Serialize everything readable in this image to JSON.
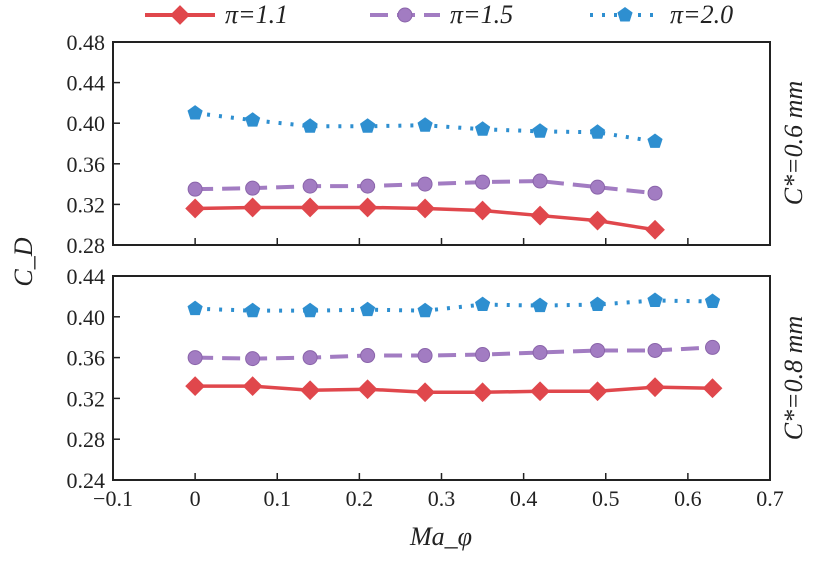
{
  "chart_data": [
    {
      "type": "line",
      "panel_label": "C*=0.6 mm",
      "ylabel": "C_D",
      "xlabel": "Ma_φ",
      "xlim": [
        -0.1,
        0.7
      ],
      "ylim": [
        0.28,
        0.48
      ],
      "yticks": [
        "0.28",
        "0.32",
        "0.36",
        "0.40",
        "0.44",
        "0.48"
      ],
      "series": [
        {
          "name": "π=1.1",
          "x": [
            0,
            0.07,
            0.14,
            0.21,
            0.28,
            0.35,
            0.42,
            0.49,
            0.56
          ],
          "y": [
            0.316,
            0.317,
            0.317,
            0.317,
            0.316,
            0.314,
            0.309,
            0.304,
            0.295
          ]
        },
        {
          "name": "π=1.5",
          "x": [
            0,
            0.07,
            0.14,
            0.21,
            0.28,
            0.35,
            0.42,
            0.49,
            0.56
          ],
          "y": [
            0.335,
            0.336,
            0.338,
            0.338,
            0.34,
            0.342,
            0.343,
            0.337,
            0.331
          ]
        },
        {
          "name": "π=2.0",
          "x": [
            0,
            0.07,
            0.14,
            0.21,
            0.28,
            0.35,
            0.42,
            0.49,
            0.56
          ],
          "y": [
            0.41,
            0.403,
            0.397,
            0.397,
            0.398,
            0.394,
            0.392,
            0.391,
            0.382
          ]
        }
      ]
    },
    {
      "type": "line",
      "panel_label": "C*=0.8 mm",
      "xlim": [
        -0.1,
        0.7
      ],
      "ylim": [
        0.24,
        0.44
      ],
      "yticks": [
        "0.24",
        "0.28",
        "0.32",
        "0.36",
        "0.40",
        "0.44"
      ],
      "xticks": [
        "−0.1",
        "0",
        "0.1",
        "0.2",
        "0.3",
        "0.4",
        "0.5",
        "0.6",
        "0.7"
      ],
      "series": [
        {
          "name": "π=1.1",
          "x": [
            0,
            0.07,
            0.14,
            0.21,
            0.28,
            0.35,
            0.42,
            0.49,
            0.56,
            0.63
          ],
          "y": [
            0.332,
            0.332,
            0.328,
            0.329,
            0.326,
            0.326,
            0.327,
            0.327,
            0.331,
            0.33
          ]
        },
        {
          "name": "π=1.5",
          "x": [
            0,
            0.07,
            0.14,
            0.21,
            0.28,
            0.35,
            0.42,
            0.49,
            0.56,
            0.63
          ],
          "y": [
            0.36,
            0.359,
            0.36,
            0.362,
            0.362,
            0.363,
            0.365,
            0.367,
            0.367,
            0.37
          ]
        },
        {
          "name": "π=2.0",
          "x": [
            0,
            0.07,
            0.14,
            0.21,
            0.28,
            0.35,
            0.42,
            0.49,
            0.56,
            0.63
          ],
          "y": [
            0.408,
            0.406,
            0.406,
            0.407,
            0.406,
            0.412,
            0.411,
            0.412,
            0.416,
            0.415
          ]
        }
      ]
    }
  ],
  "legend": [
    "π=1.1",
    "π=1.5",
    "π=2.0"
  ],
  "axis": {
    "ylabel_main": "C",
    "ylabel_sub": "D",
    "xlabel_main": "Ma",
    "xlabel_sub": "φ"
  },
  "colors": [
    "#e0474c",
    "#a27cc2",
    "#2e8fd0"
  ]
}
